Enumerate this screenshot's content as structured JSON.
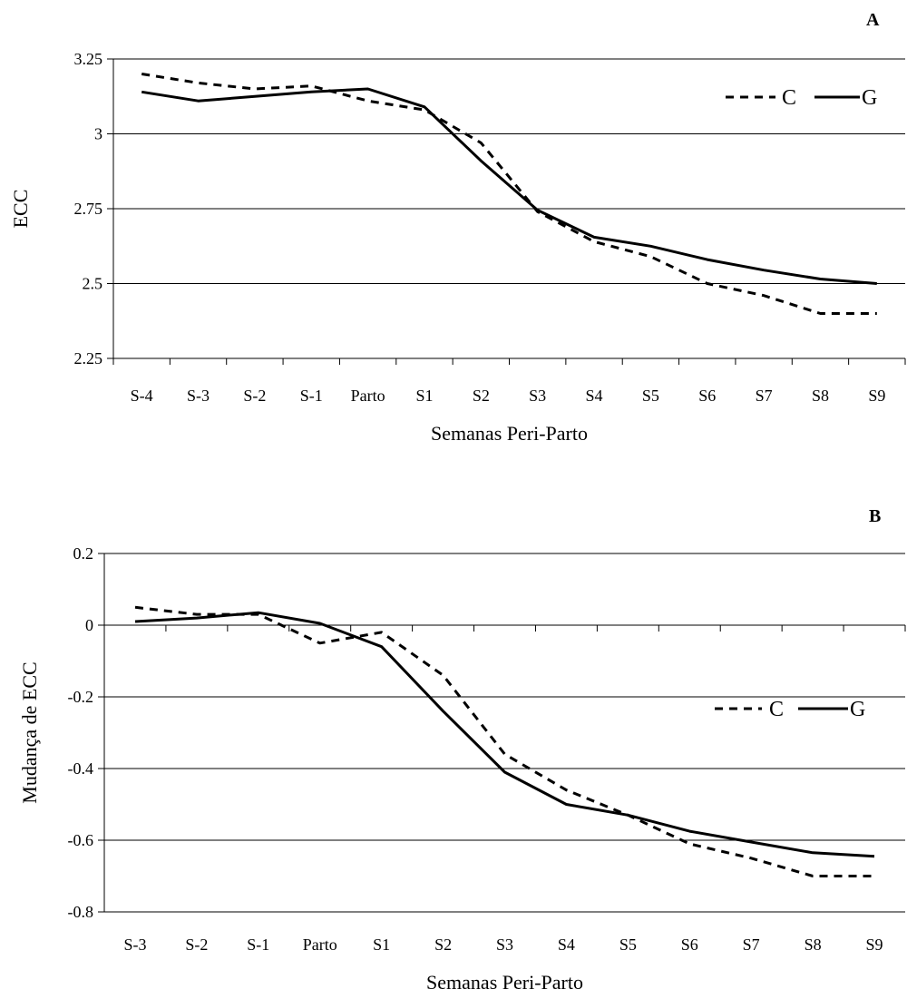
{
  "chart_data": [
    {
      "type": "line",
      "panel_label": "A",
      "title": "",
      "xlabel": "Semanas Peri-Parto",
      "ylabel": "ECC",
      "ylim": [
        2.25,
        3.25
      ],
      "yticks": [
        "3.25",
        "3",
        "2.75",
        "2.5",
        "2.25"
      ],
      "ytick_values": [
        3.25,
        3.0,
        2.75,
        2.5,
        2.25
      ],
      "grid": true,
      "legend_position": "top-right",
      "categories": [
        "S-4",
        "S-3",
        "S-2",
        "S-1",
        "Parto",
        "S1",
        "S2",
        "S3",
        "S4",
        "S5",
        "S6",
        "S7",
        "S8",
        "S9"
      ],
      "series": [
        {
          "name": "C",
          "style": "dashed",
          "values": [
            3.2,
            3.17,
            3.15,
            3.16,
            3.11,
            3.08,
            2.97,
            2.74,
            2.64,
            2.59,
            2.5,
            2.46,
            2.4,
            2.4
          ]
        },
        {
          "name": "G",
          "style": "solid",
          "values": [
            3.14,
            3.11,
            3.125,
            3.14,
            3.15,
            3.09,
            2.91,
            2.745,
            2.655,
            2.625,
            2.58,
            2.545,
            2.515,
            2.5
          ]
        }
      ]
    },
    {
      "type": "line",
      "panel_label": "B",
      "title": "",
      "xlabel": "Semanas Peri-Parto",
      "ylabel": "Mudança de ECC",
      "ylim": [
        -0.8,
        0.2
      ],
      "yticks": [
        "0.2",
        "0",
        "-0.2",
        "-0.4",
        "-0.6",
        "-0.8"
      ],
      "ytick_values": [
        0.2,
        0.0,
        -0.2,
        -0.4,
        -0.6,
        -0.8
      ],
      "grid": true,
      "legend_position": "right",
      "categories": [
        "S-3",
        "S-2",
        "S-1",
        "Parto",
        "S1",
        "S2",
        "S3",
        "S4",
        "S5",
        "S6",
        "S7",
        "S8",
        "S9"
      ],
      "series": [
        {
          "name": "C",
          "style": "dashed",
          "values": [
            0.05,
            0.03,
            0.03,
            -0.05,
            -0.02,
            -0.14,
            -0.36,
            -0.46,
            -0.53,
            -0.61,
            -0.65,
            -0.7,
            -0.7
          ]
        },
        {
          "name": "G",
          "style": "solid",
          "values": [
            0.01,
            0.02,
            0.035,
            0.005,
            -0.06,
            -0.24,
            -0.41,
            -0.5,
            -0.53,
            -0.575,
            -0.605,
            -0.635,
            -0.645
          ]
        }
      ]
    }
  ]
}
